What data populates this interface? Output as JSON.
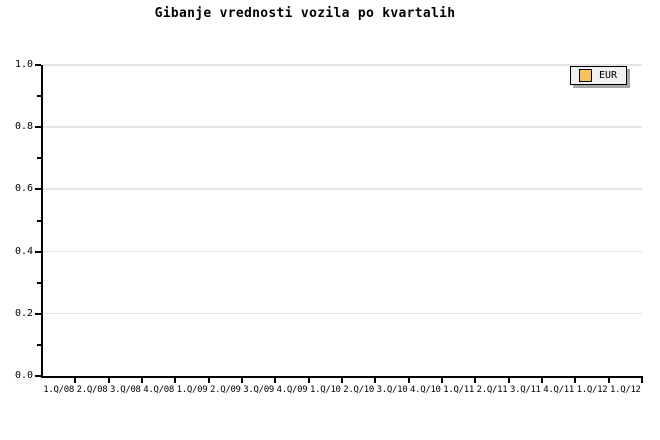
{
  "colors": {
    "background": "#ffffff",
    "axis": "#000000",
    "gridline": "#e4e4e4",
    "text": "#000000",
    "legend_background": "#f0f0f0",
    "legend_border": "#000000",
    "legend_shadow": "#a6a6a6",
    "eur_swatch": "#f7c15e"
  },
  "chart_data": {
    "type": "line",
    "title": "Gibanje vrednosti vozila po kvartalih",
    "categories": [
      "1.Q/08",
      "2.Q/08",
      "3.Q/08",
      "4.Q/08",
      "1.Q/09",
      "2.Q/09",
      "3.Q/09",
      "4.Q/09",
      "1.Q/10",
      "2.Q/10",
      "3.Q/10",
      "4.Q/10",
      "1.Q/11",
      "2.Q/11",
      "3.Q/11",
      "4.Q/11",
      "1.Q/12",
      "1.Q/12"
    ],
    "series": [
      {
        "name": "EUR",
        "values": []
      }
    ],
    "xlabel": "",
    "ylabel": "",
    "ylim": [
      0.0,
      1.0
    ],
    "yticks": [
      "0.0",
      "0.2",
      "0.4",
      "0.6",
      "0.8",
      "1.0"
    ],
    "y_minor_tick_step": 0.1,
    "grid": "horizontal",
    "legend_position": "top-right"
  }
}
